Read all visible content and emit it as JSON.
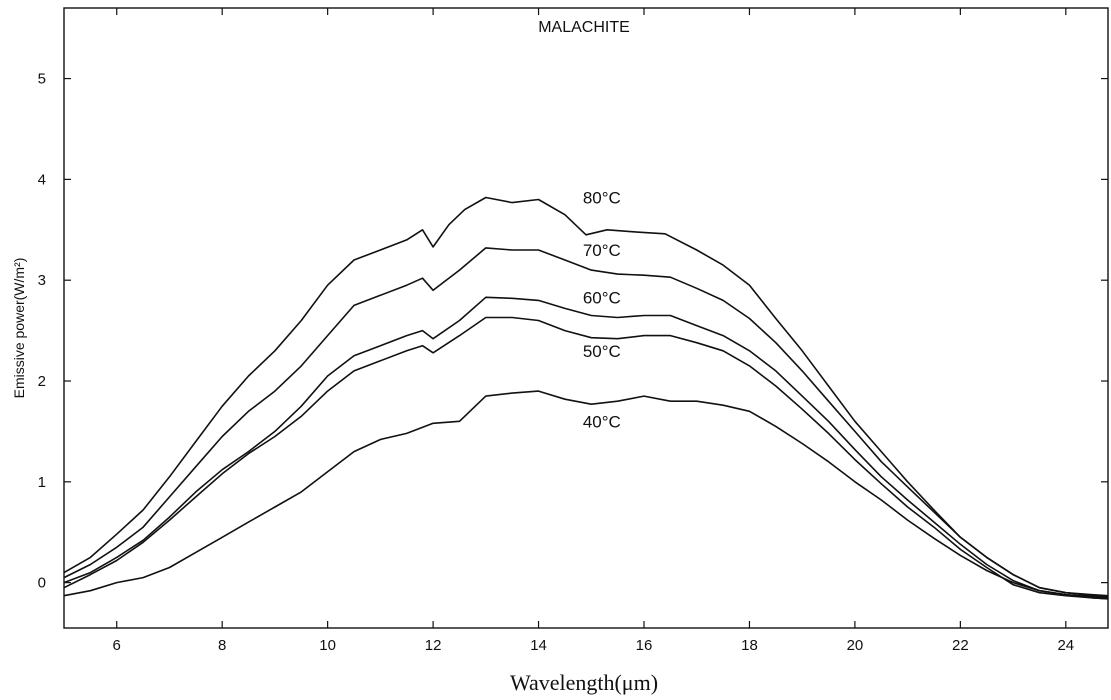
{
  "chart_data": {
    "type": "line",
    "title": "MALACHITE",
    "xlabel": "Wavelength(μm)",
    "ylabel": "Emissive power(W/m²)",
    "xlim": [
      5,
      24.8
    ],
    "ylim": [
      -0.45,
      5.7
    ],
    "xticks": [
      "6",
      "8",
      "10",
      "12",
      "14",
      "16",
      "18",
      "20",
      "22",
      "24"
    ],
    "yticks": [
      "0",
      "1",
      "2",
      "3",
      "4",
      "5"
    ],
    "grid": false,
    "series": [
      {
        "name": "80°C",
        "x": [
          5,
          5.5,
          6,
          6.5,
          7,
          7.5,
          8,
          8.5,
          9,
          9.5,
          10,
          10.5,
          11,
          11.5,
          11.8,
          12,
          12.3,
          12.6,
          13,
          13.5,
          14,
          14.5,
          14.9,
          15.3,
          15.8,
          16.4,
          17,
          17.5,
          18,
          18.5,
          19,
          19.5,
          20,
          20.5,
          21,
          21.5,
          22,
          22.5,
          23,
          23.5,
          24,
          24.5,
          24.8
        ],
        "y": [
          0.1,
          0.25,
          0.48,
          0.72,
          1.05,
          1.4,
          1.75,
          2.05,
          2.3,
          2.6,
          2.95,
          3.2,
          3.3,
          3.4,
          3.5,
          3.33,
          3.55,
          3.7,
          3.82,
          3.77,
          3.8,
          3.65,
          3.45,
          3.5,
          3.48,
          3.46,
          3.3,
          3.15,
          2.95,
          2.62,
          2.3,
          1.95,
          1.6,
          1.3,
          1.0,
          0.72,
          0.45,
          0.25,
          0.08,
          -0.05,
          -0.1,
          -0.12,
          -0.13
        ]
      },
      {
        "name": "70°C",
        "x": [
          5,
          5.5,
          6,
          6.5,
          7,
          7.5,
          8,
          8.5,
          9,
          9.5,
          10,
          10.5,
          11,
          11.5,
          11.8,
          12,
          12.5,
          13,
          13.5,
          14,
          14.5,
          15,
          15.5,
          16,
          16.5,
          17,
          17.5,
          18,
          18.5,
          19,
          19.5,
          20,
          20.5,
          21,
          21.5,
          22,
          22.5,
          23,
          23.5,
          24,
          24.5,
          24.8
        ],
        "y": [
          0.05,
          0.18,
          0.35,
          0.55,
          0.85,
          1.15,
          1.45,
          1.7,
          1.9,
          2.15,
          2.45,
          2.75,
          2.85,
          2.95,
          3.02,
          2.9,
          3.1,
          3.32,
          3.3,
          3.3,
          3.2,
          3.1,
          3.06,
          3.05,
          3.03,
          2.92,
          2.8,
          2.62,
          2.38,
          2.1,
          1.8,
          1.5,
          1.2,
          0.95,
          0.7,
          0.45,
          0.25,
          0.08,
          -0.05,
          -0.1,
          -0.13,
          -0.14
        ]
      },
      {
        "name": "60°C",
        "x": [
          5,
          5.5,
          6,
          6.5,
          7,
          7.5,
          8,
          8.5,
          9,
          9.5,
          10,
          10.5,
          11,
          11.5,
          11.8,
          12,
          12.5,
          13,
          13.5,
          14,
          14.5,
          15,
          15.5,
          16,
          16.5,
          17,
          17.5,
          18,
          18.5,
          19,
          19.5,
          20,
          20.5,
          21,
          21.5,
          22,
          22.5,
          23,
          23.5,
          24,
          24.5,
          24.8
        ],
        "y": [
          0.0,
          0.1,
          0.25,
          0.42,
          0.65,
          0.9,
          1.12,
          1.3,
          1.5,
          1.75,
          2.05,
          2.25,
          2.35,
          2.45,
          2.5,
          2.42,
          2.6,
          2.83,
          2.82,
          2.8,
          2.72,
          2.65,
          2.63,
          2.65,
          2.65,
          2.55,
          2.45,
          2.3,
          2.1,
          1.85,
          1.6,
          1.32,
          1.05,
          0.82,
          0.6,
          0.38,
          0.18,
          0.02,
          -0.08,
          -0.12,
          -0.14,
          -0.15
        ]
      },
      {
        "name": "50°C",
        "x": [
          5,
          5.5,
          6,
          6.5,
          7,
          7.5,
          8,
          8.5,
          9,
          9.5,
          10,
          10.5,
          11,
          11.5,
          11.8,
          12,
          12.5,
          13,
          13.5,
          14,
          14.5,
          15,
          15.5,
          16,
          16.5,
          17,
          17.5,
          18,
          18.5,
          19,
          19.5,
          20,
          20.5,
          21,
          21.5,
          22,
          22.5,
          23,
          23.5,
          24,
          24.5,
          24.8
        ],
        "y": [
          -0.05,
          0.08,
          0.22,
          0.4,
          0.62,
          0.85,
          1.08,
          1.28,
          1.45,
          1.65,
          1.9,
          2.1,
          2.2,
          2.3,
          2.35,
          2.28,
          2.45,
          2.63,
          2.63,
          2.6,
          2.5,
          2.43,
          2.42,
          2.45,
          2.45,
          2.38,
          2.3,
          2.15,
          1.95,
          1.72,
          1.48,
          1.22,
          0.98,
          0.75,
          0.55,
          0.33,
          0.15,
          -0.02,
          -0.1,
          -0.13,
          -0.15,
          -0.16
        ]
      },
      {
        "name": "40°C",
        "x": [
          5,
          5.5,
          6,
          6.5,
          7,
          7.5,
          8,
          8.5,
          9,
          9.5,
          10,
          10.5,
          11,
          11.5,
          12,
          12.5,
          13,
          13.5,
          14,
          14.5,
          15,
          15.5,
          16,
          16.5,
          17,
          17.5,
          18,
          18.5,
          19,
          19.5,
          20,
          20.5,
          21,
          21.5,
          22,
          22.5,
          23,
          23.5,
          24,
          24.5,
          24.8
        ],
        "y": [
          -0.13,
          -0.08,
          0.0,
          0.05,
          0.15,
          0.3,
          0.45,
          0.6,
          0.75,
          0.9,
          1.1,
          1.3,
          1.42,
          1.48,
          1.58,
          1.6,
          1.85,
          1.88,
          1.9,
          1.82,
          1.77,
          1.8,
          1.85,
          1.8,
          1.8,
          1.76,
          1.7,
          1.55,
          1.38,
          1.2,
          1.0,
          0.82,
          0.62,
          0.44,
          0.27,
          0.12,
          0.0,
          -0.08,
          -0.12,
          -0.15,
          -0.16
        ]
      }
    ],
    "labels": [
      {
        "text": "80°C",
        "x": 15.2,
        "y": 3.82
      },
      {
        "text": "70°C",
        "x": 15.2,
        "y": 3.3
      },
      {
        "text": "60°C",
        "x": 15.2,
        "y": 2.83
      },
      {
        "text": "50°C",
        "x": 15.2,
        "y": 2.3
      },
      {
        "text": "40°C",
        "x": 15.2,
        "y": 1.6
      }
    ]
  }
}
